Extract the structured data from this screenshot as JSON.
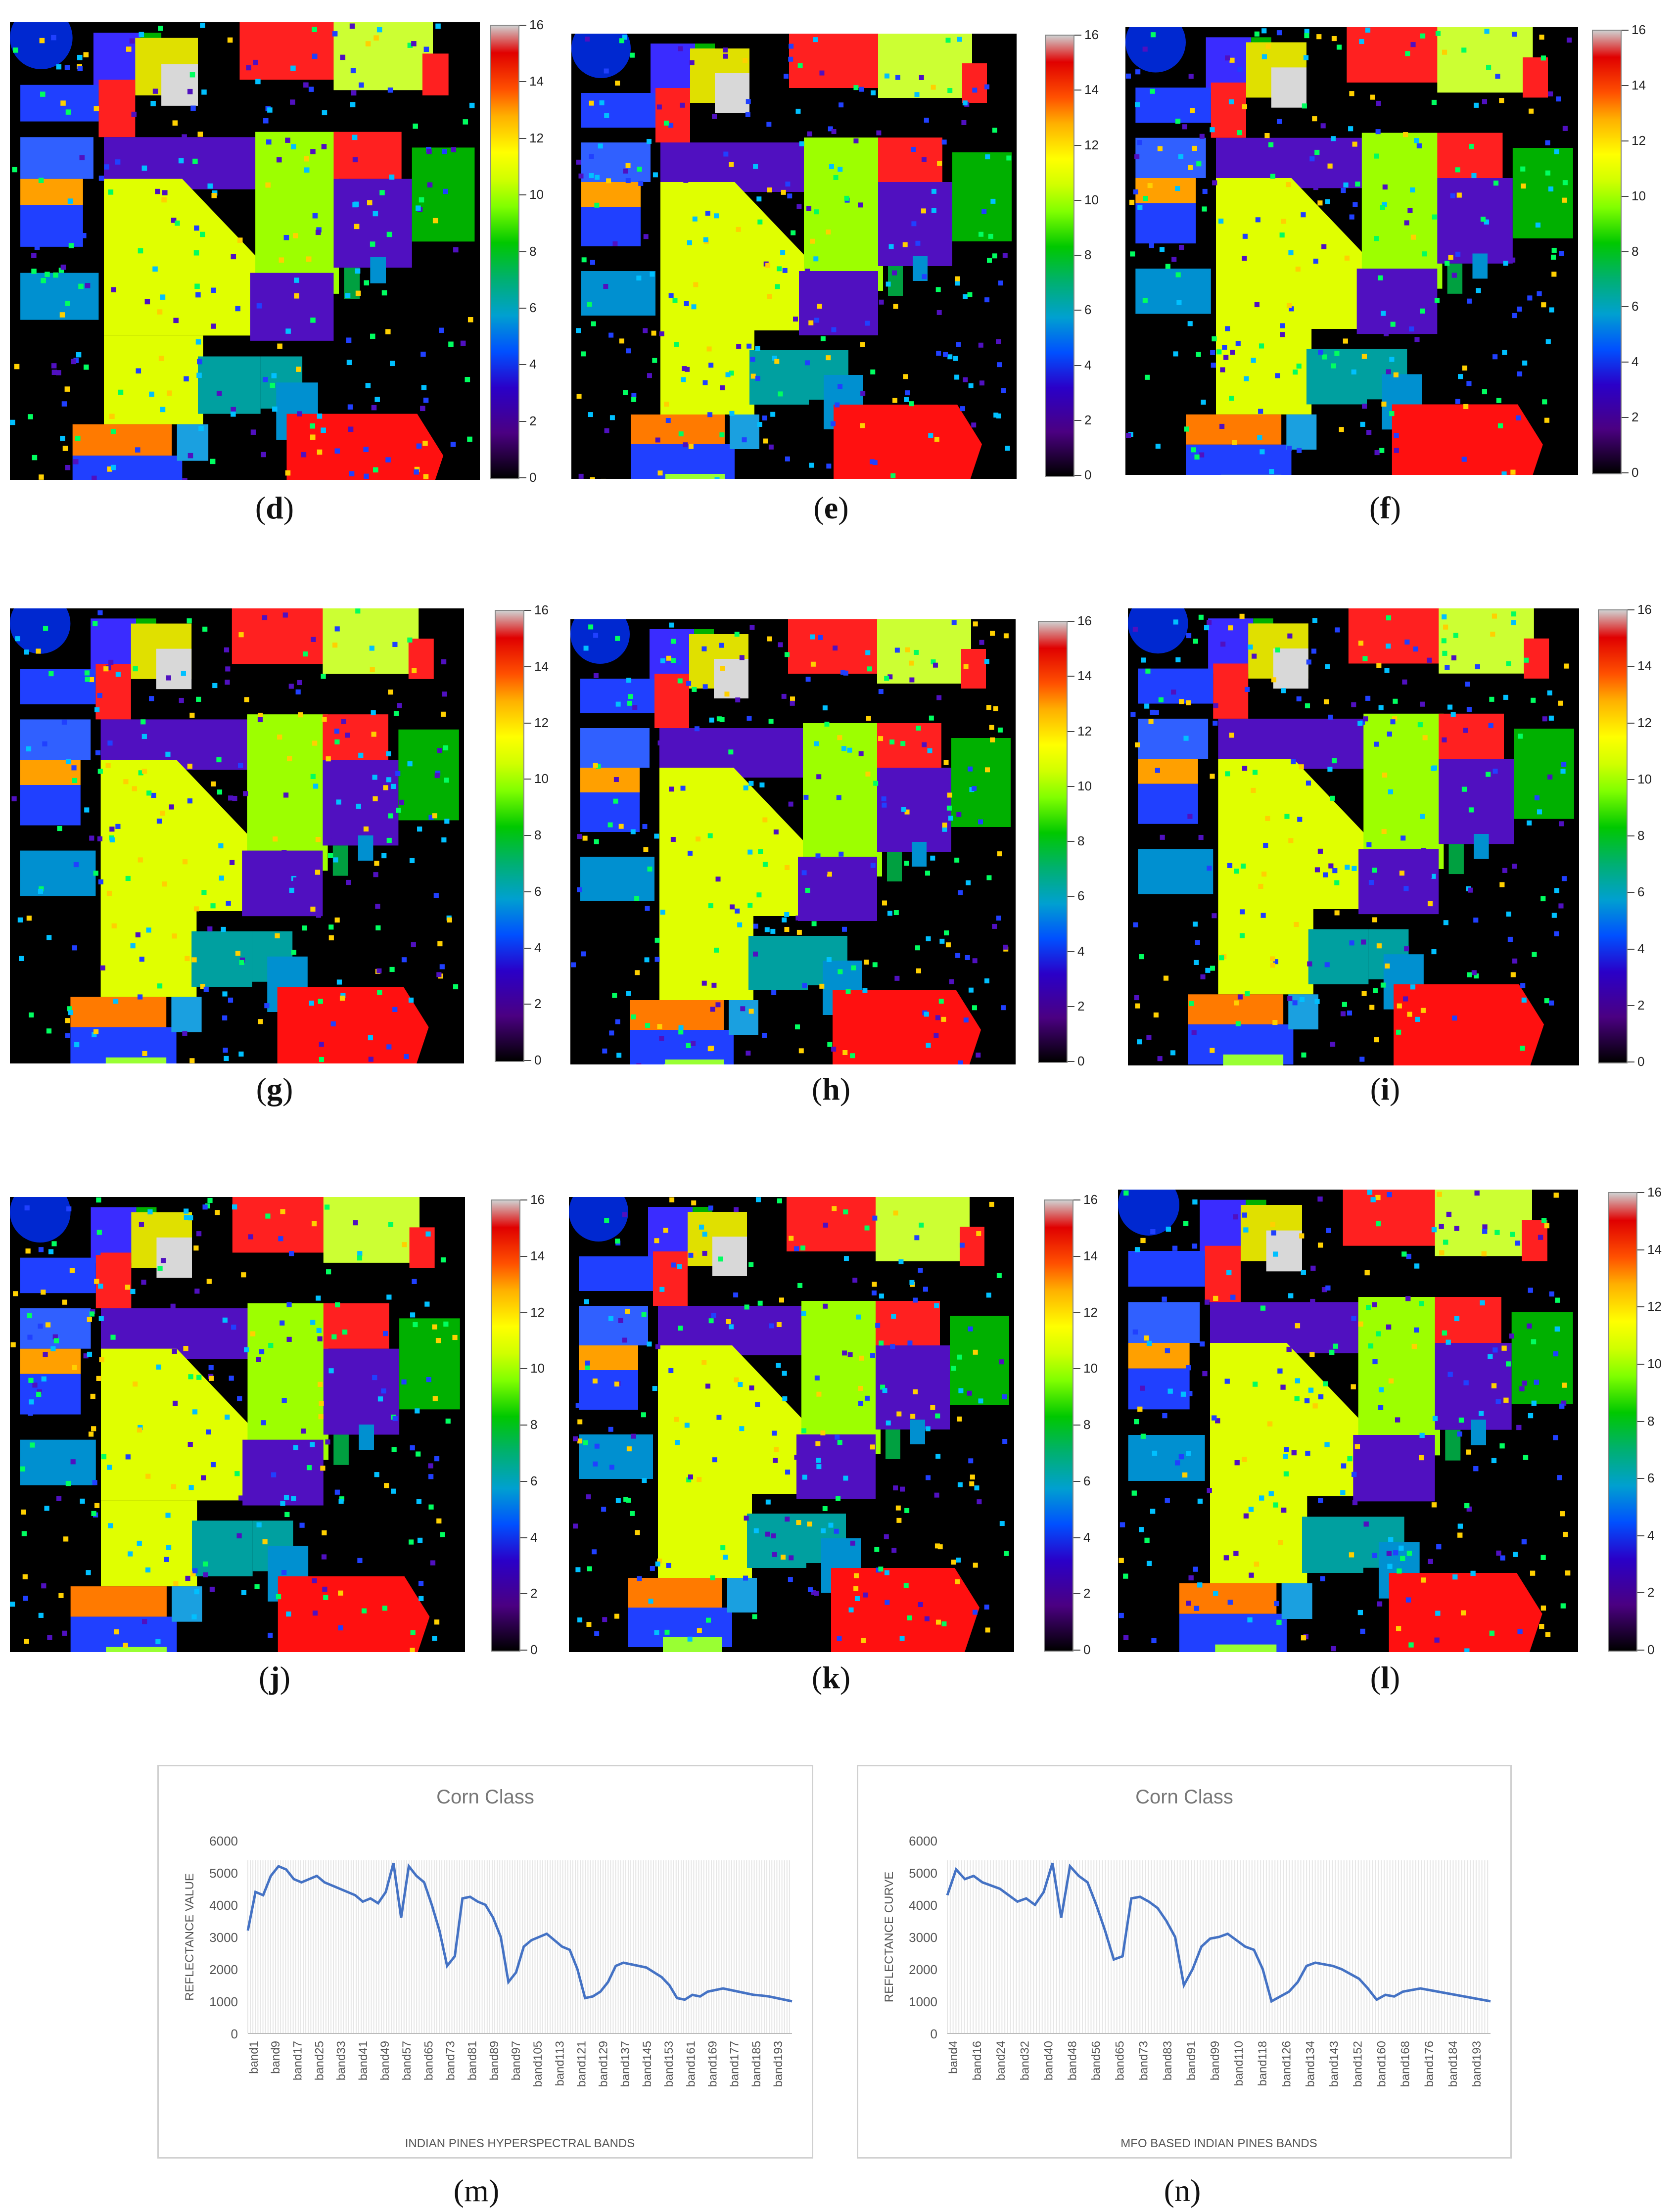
{
  "panels": [
    {
      "id": "d",
      "caption": "(d)"
    },
    {
      "id": "e",
      "caption": "(e)"
    },
    {
      "id": "f",
      "caption": "(f)"
    },
    {
      "id": "g",
      "caption": "(g)"
    },
    {
      "id": "h",
      "caption": "(h)"
    },
    {
      "id": "i",
      "caption": "(i)"
    },
    {
      "id": "j",
      "caption": "(j)"
    },
    {
      "id": "k",
      "caption": "(k)"
    },
    {
      "id": "l",
      "caption": "(l)"
    }
  ],
  "colorbar_ticks": [
    "16",
    "14",
    "12",
    "10",
    "8",
    "6",
    "4",
    "2",
    "0"
  ],
  "captions": {
    "d": "d",
    "e": "e",
    "f": "f",
    "g": "g",
    "h": "h",
    "i": "i",
    "j": "j",
    "k": "k",
    "l": "l",
    "m": "m",
    "n": "n"
  },
  "chart_data": [
    {
      "type": "line",
      "title": "Corn Class",
      "xlabel": "INDIAN PINES HYPERSPECTRAL BANDS",
      "ylabel": "REFLECTANCE VALUE",
      "ylim": [
        0,
        6000
      ],
      "yticks": [
        "0",
        "1000",
        "2000",
        "3000",
        "4000",
        "5000",
        "6000"
      ],
      "xticks": [
        "band1",
        "band9",
        "band17",
        "band25",
        "band33",
        "band41",
        "band49",
        "band57",
        "band65",
        "band73",
        "band81",
        "band89",
        "band97",
        "band105",
        "band113",
        "band121",
        "band129",
        "band137",
        "band145",
        "band153",
        "band161",
        "band169",
        "band177",
        "band185",
        "band193"
      ],
      "series": [
        {
          "values": [
            3200,
            4400,
            4300,
            4900,
            5200,
            5100,
            4800,
            4700,
            4800,
            4900,
            4700,
            4600,
            4500,
            4400,
            4300,
            4100,
            4200,
            4050,
            4400,
            5300,
            3600,
            5200,
            4900,
            4700,
            4000,
            3200,
            2100,
            2400,
            4200,
            4250,
            4100,
            4000,
            3600,
            3000,
            1600,
            1900,
            2700,
            2900,
            3000,
            3100,
            2900,
            2700,
            2600,
            2000,
            1100,
            1150,
            1300,
            1600,
            2100,
            2200,
            2150,
            2100,
            2050,
            1900,
            1750,
            1500,
            1100,
            1050,
            1200,
            1150,
            1300,
            1350,
            1400,
            1350,
            1300,
            1250,
            1200,
            1180,
            1150,
            1100,
            1050,
            1000
          ]
        }
      ]
    },
    {
      "type": "line",
      "title": "Corn Class",
      "xlabel": "MFO BASED INDIAN PINES BANDS",
      "ylabel": "REFLECTANCE CURVE",
      "ylim": [
        0,
        6000
      ],
      "yticks": [
        "0",
        "1000",
        "2000",
        "3000",
        "4000",
        "5000",
        "6000"
      ],
      "xticks": [
        "band4",
        "band16",
        "band24",
        "band32",
        "band40",
        "band48",
        "band56",
        "band65",
        "band73",
        "band83",
        "band91",
        "band99",
        "band110",
        "band118",
        "band126",
        "band134",
        "band143",
        "band152",
        "band160",
        "band168",
        "band176",
        "band184",
        "band193"
      ],
      "series": [
        {
          "values": [
            4300,
            5100,
            4800,
            4900,
            4700,
            4600,
            4500,
            4300,
            4100,
            4200,
            4000,
            4400,
            5300,
            3600,
            5200,
            4900,
            4700,
            4000,
            3200,
            2300,
            2400,
            4200,
            4250,
            4100,
            3900,
            3500,
            3000,
            1500,
            2000,
            2700,
            2950,
            3000,
            3100,
            2900,
            2700,
            2600,
            2000,
            1000,
            1150,
            1300,
            1600,
            2100,
            2200,
            2150,
            2100,
            2000,
            1850,
            1700,
            1400,
            1050,
            1200,
            1150,
            1300,
            1350,
            1400,
            1350,
            1300,
            1250,
            1200,
            1150,
            1100,
            1050,
            1000
          ]
        }
      ]
    }
  ],
  "chart_captions": [
    "(m)",
    "(n)"
  ]
}
